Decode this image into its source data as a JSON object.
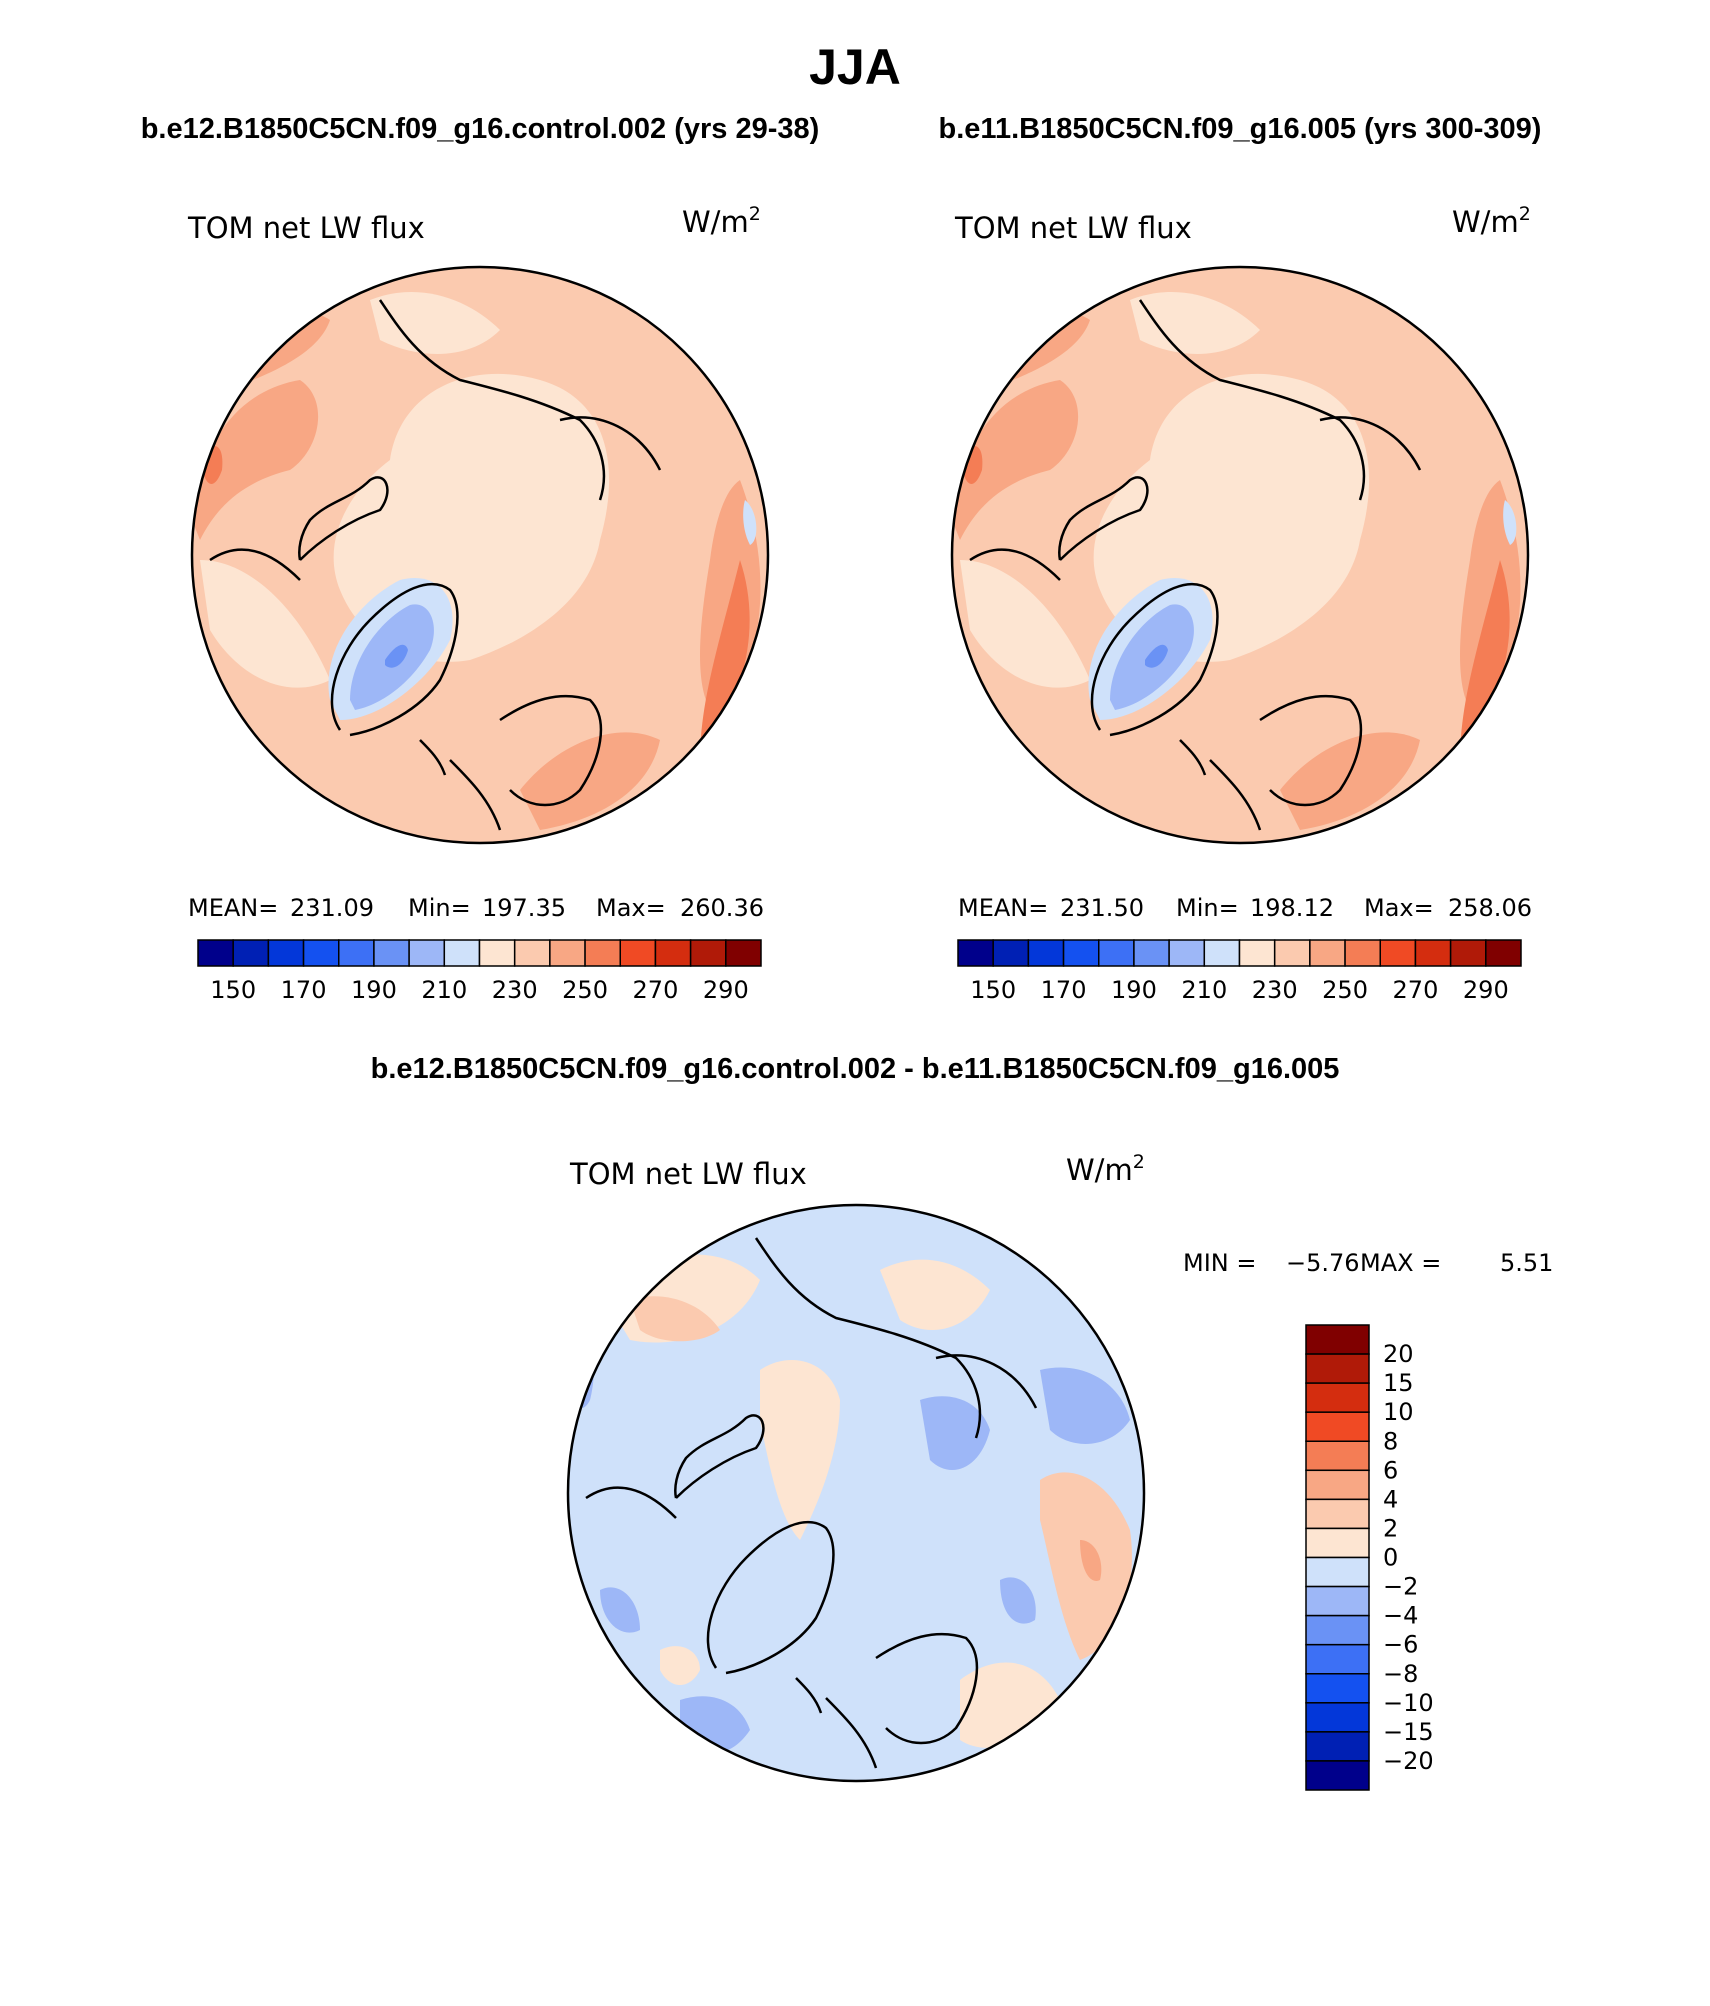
{
  "season": "JJA",
  "case_a": "b.e12.B1850C5CN.f09_g16.control.002 (yrs 29-38)",
  "case_b": "b.e11.B1850C5CN.f09_g16.005 (yrs 300-309)",
  "diff_title": "b.e12.B1850C5CN.f09_g16.control.002 - b.e11.B1850C5CN.f09_g16.005",
  "variable": "TOM net LW flux",
  "units_base": "W/m",
  "units_exp": "2",
  "panels": [
    {
      "id": "panel-a",
      "stats": {
        "mean_label": "MEAN=",
        "mean": "231.09",
        "min_label": "Min=",
        "min": "197.35",
        "max_label": "Max=",
        "max": "260.36"
      }
    },
    {
      "id": "panel-b",
      "stats": {
        "mean_label": "MEAN=",
        "mean": "231.50",
        "min_label": "Min=",
        "min": "198.12",
        "max_label": "Max=",
        "max": "258.06"
      }
    }
  ],
  "diff_stats": {
    "min_label": "MIN =",
    "min": "−5.76",
    "max_label": "MAX =",
    "max": "5.51"
  },
  "abs_colorbar": {
    "colors": [
      "#00008b",
      "#0020b4",
      "#0337d9",
      "#1451f0",
      "#3d70f5",
      "#6a92f5",
      "#9db7f7",
      "#cfe1fa",
      "#fde5d2",
      "#fbcaaf",
      "#f8a784",
      "#f47d55",
      "#f04a24",
      "#d42d0f",
      "#b01a08",
      "#800000"
    ],
    "labels": [
      "150",
      "170",
      "190",
      "210",
      "230",
      "250",
      "270",
      "290"
    ]
  },
  "diff_colorbar": {
    "colors": [
      "#00008b",
      "#0020b4",
      "#0337d9",
      "#1451f0",
      "#3d70f5",
      "#6a92f5",
      "#9db7f7",
      "#cfe1fa",
      "#fde5d2",
      "#fbcaaf",
      "#f8a784",
      "#f47d55",
      "#f04a24",
      "#d42d0f",
      "#b01a08",
      "#800000"
    ],
    "labels": [
      "20",
      "15",
      "10",
      "8",
      "6",
      "4",
      "2",
      "0",
      "−2",
      "−4",
      "−6",
      "−8",
      "−10",
      "−15",
      "−20"
    ]
  }
}
